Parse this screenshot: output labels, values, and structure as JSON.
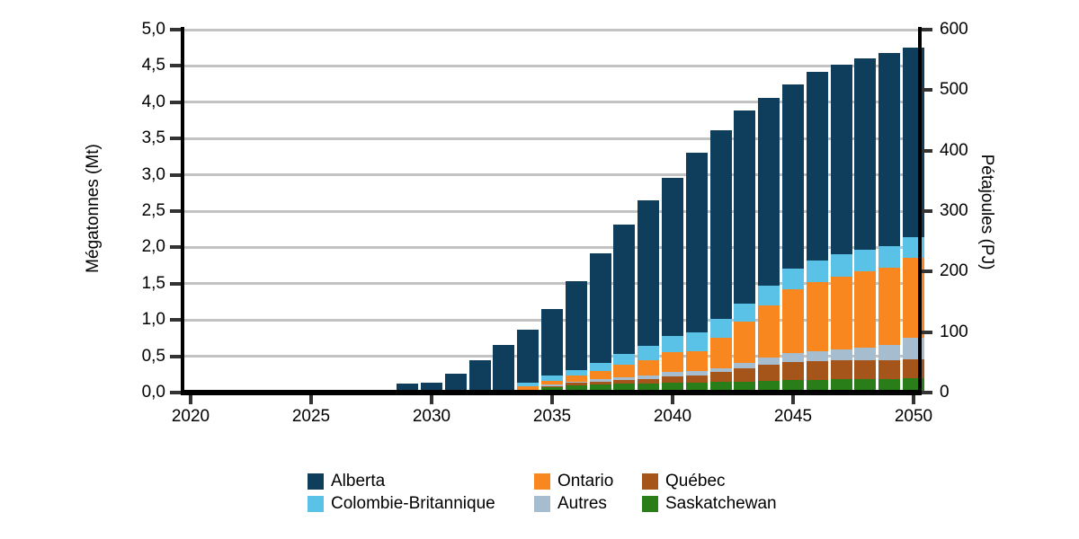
{
  "chart_data": {
    "type": "bar",
    "subtype": "stacked-column",
    "title": "",
    "years": [
      2029,
      2030,
      2031,
      2032,
      2033,
      2034,
      2035,
      2036,
      2037,
      2038,
      2039,
      2040,
      2041,
      2042,
      2043,
      2044,
      2045,
      2046,
      2047,
      2048,
      2049,
      2050
    ],
    "stack_order_bottom_to_top": [
      "Saskatchewan",
      "Québec",
      "Autres",
      "Ontario",
      "Colombie-Britannique",
      "Alberta"
    ],
    "series": [
      {
        "name": "Saskatchewan",
        "color": "#2A7E19",
        "values": [
          0,
          0,
          0,
          0,
          0,
          0.01,
          0.07,
          0.1,
          0.11,
          0.12,
          0.12,
          0.13,
          0.14,
          0.15,
          0.15,
          0.16,
          0.17,
          0.17,
          0.18,
          0.18,
          0.19,
          0.2
        ]
      },
      {
        "name": "Québec",
        "color": "#A5551A",
        "values": [
          0,
          0,
          0,
          0,
          0,
          0.01,
          0.02,
          0.03,
          0.04,
          0.05,
          0.07,
          0.09,
          0.1,
          0.13,
          0.18,
          0.22,
          0.25,
          0.26,
          0.26,
          0.26,
          0.26,
          0.26
        ]
      },
      {
        "name": "Autres",
        "color": "#A6BCCF",
        "values": [
          0,
          0,
          0,
          0,
          0,
          0.01,
          0.02,
          0.02,
          0.03,
          0.04,
          0.05,
          0.06,
          0.06,
          0.06,
          0.08,
          0.1,
          0.12,
          0.14,
          0.16,
          0.18,
          0.2,
          0.3
        ]
      },
      {
        "name": "Ontario",
        "color": "#F8871F",
        "values": [
          0,
          0,
          0,
          0,
          0.01,
          0.06,
          0.05,
          0.08,
          0.12,
          0.17,
          0.2,
          0.28,
          0.27,
          0.41,
          0.57,
          0.72,
          0.88,
          0.95,
          1.0,
          1.05,
          1.07,
          1.1
        ]
      },
      {
        "name": "Colombie-Britannique",
        "color": "#5BC2E7",
        "values": [
          0,
          0,
          0,
          0.01,
          0.03,
          0.05,
          0.08,
          0.08,
          0.11,
          0.15,
          0.2,
          0.22,
          0.26,
          0.27,
          0.25,
          0.27,
          0.29,
          0.3,
          0.3,
          0.3,
          0.3,
          0.28
        ]
      },
      {
        "name": "Alberta",
        "color": "#0E3E5C",
        "values": [
          0.12,
          0.14,
          0.26,
          0.44,
          0.61,
          0.73,
          0.91,
          1.22,
          1.51,
          1.79,
          2.01,
          2.18,
          2.47,
          2.6,
          2.65,
          2.59,
          2.54,
          2.6,
          2.62,
          2.63,
          2.66,
          2.61
        ]
      }
    ],
    "axes": {
      "left": {
        "title": "Mégatonnes (Mt)",
        "min": 0,
        "max": 5,
        "tick_values": [
          0,
          0.5,
          1,
          1.5,
          2,
          2.5,
          3,
          3.5,
          4,
          4.5,
          5
        ],
        "tick_labels": [
          "0,0",
          "0,5",
          "1,0",
          "1,5",
          "2,0",
          "2,5",
          "3,0",
          "3,5",
          "4,0",
          "4,5",
          "5,0"
        ]
      },
      "right": {
        "title": "Pétajoules (PJ)",
        "min": 0,
        "max": 600,
        "tick_values": [
          0,
          100,
          200,
          300,
          400,
          500,
          600
        ],
        "tick_labels": [
          "0",
          "100",
          "200",
          "300",
          "400",
          "500",
          "600"
        ]
      },
      "x": {
        "min": 2020,
        "max": 2050,
        "tick_values": [
          2020,
          2025,
          2030,
          2035,
          2040,
          2045,
          2050
        ],
        "tick_labels": [
          "2020",
          "2025",
          "2030",
          "2035",
          "2040",
          "2045",
          "2050"
        ]
      }
    },
    "gridlines": {
      "values": [
        0.5,
        1,
        1.5,
        2,
        2.5,
        3,
        3.5,
        4,
        4.5,
        5
      ],
      "color": "#C3C3C3"
    },
    "colors": {
      "axis": "#000000",
      "tick": "#333333",
      "text": "#000000",
      "background": "#FFFFFF"
    }
  },
  "legend": {
    "columns": [
      [
        "Alberta",
        "Colombie-Britannique"
      ],
      [
        "Ontario",
        "Autres"
      ],
      [
        "Québec",
        "Saskatchewan"
      ]
    ]
  }
}
